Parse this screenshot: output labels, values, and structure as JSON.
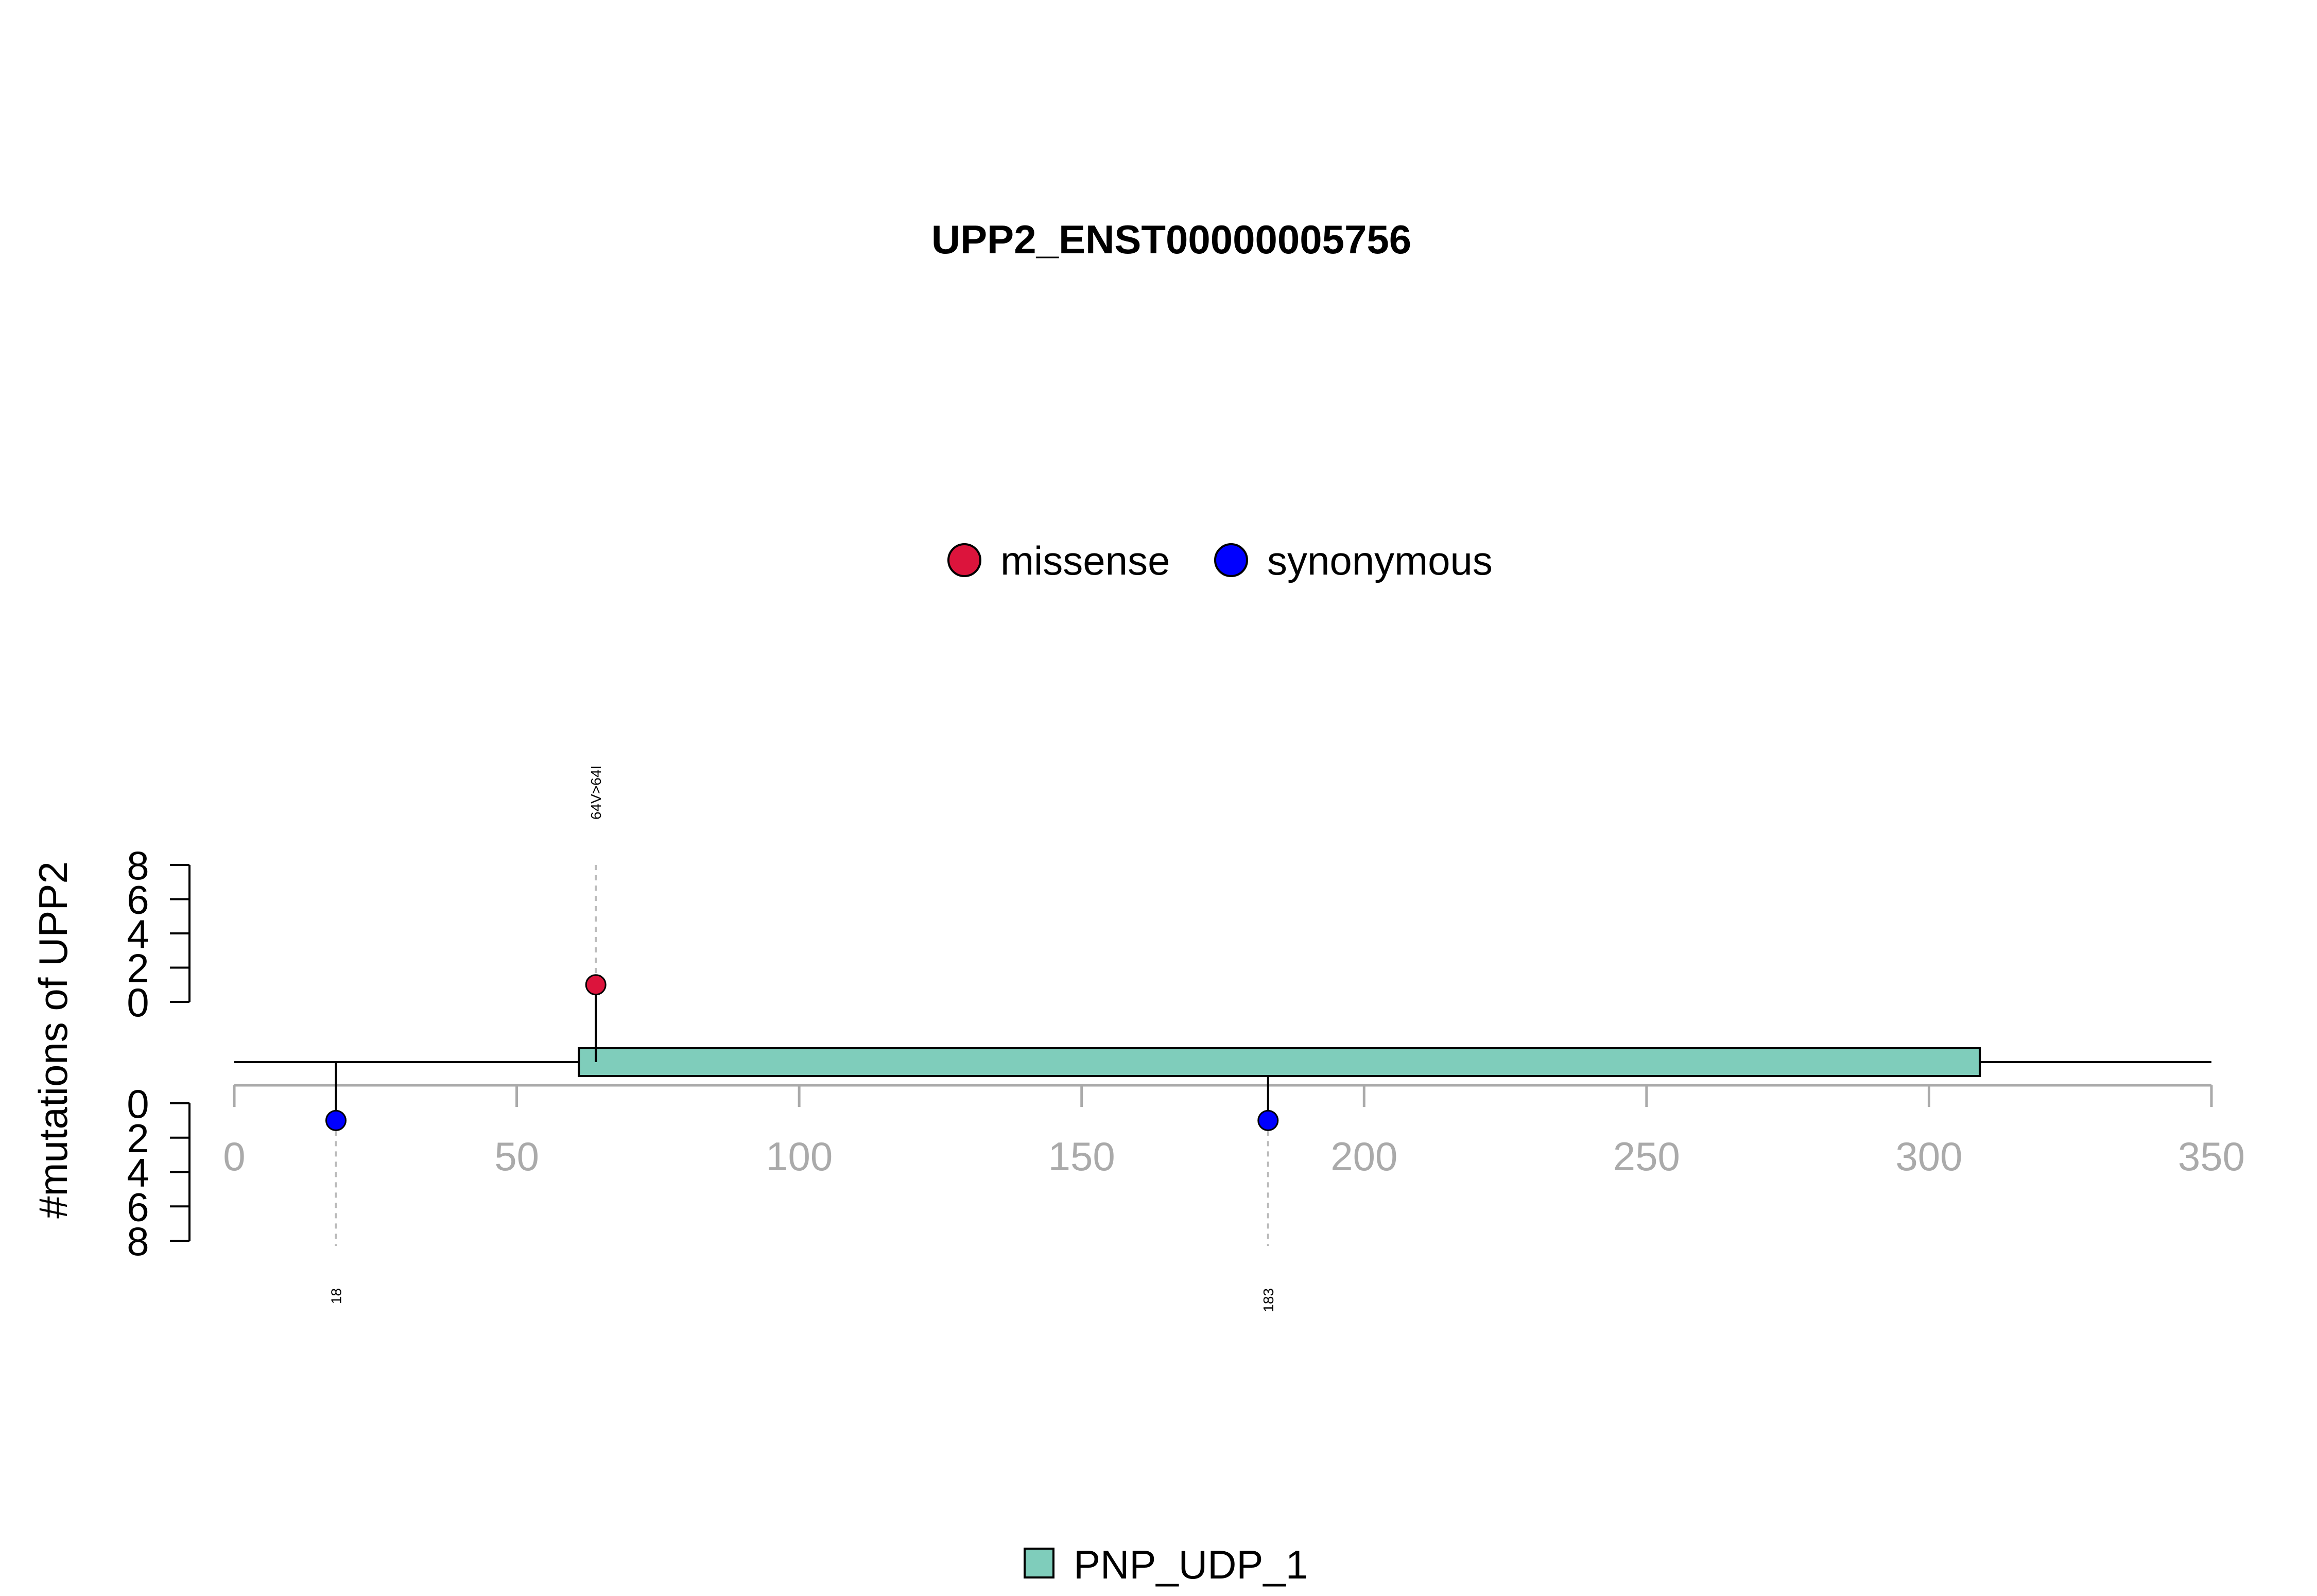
{
  "chart_data": {
    "type": "lollipop",
    "title": "UPP2_ENST00000005756",
    "ylabel": "#mutations of UPP2",
    "xlim": [
      0,
      350
    ],
    "x_ticks": [
      0,
      50,
      100,
      150,
      200,
      250,
      300,
      350
    ],
    "y_ticks": [
      0,
      2,
      4,
      6,
      8
    ],
    "ylim": [
      0,
      8
    ],
    "grid": false,
    "protein_length": 350,
    "mutation_legend": [
      {
        "name": "missense",
        "color": "#dc143c"
      },
      {
        "name": "synonymous",
        "color": "#0000ff"
      }
    ],
    "domains": [
      {
        "name": "PNP_UDP_1",
        "start": 61,
        "end": 309,
        "color": "#7fcdbb"
      }
    ],
    "mutations": [
      {
        "position": 64,
        "count": 1,
        "type": "missense",
        "label": "64V>64I",
        "side": "top",
        "color": "#dc143c"
      },
      {
        "position": 18,
        "count": 1,
        "type": "synonymous",
        "label": "18",
        "side": "bottom",
        "color": "#0000ff"
      },
      {
        "position": 183,
        "count": 1,
        "type": "synonymous",
        "label": "183",
        "side": "bottom",
        "color": "#0000ff"
      }
    ]
  }
}
